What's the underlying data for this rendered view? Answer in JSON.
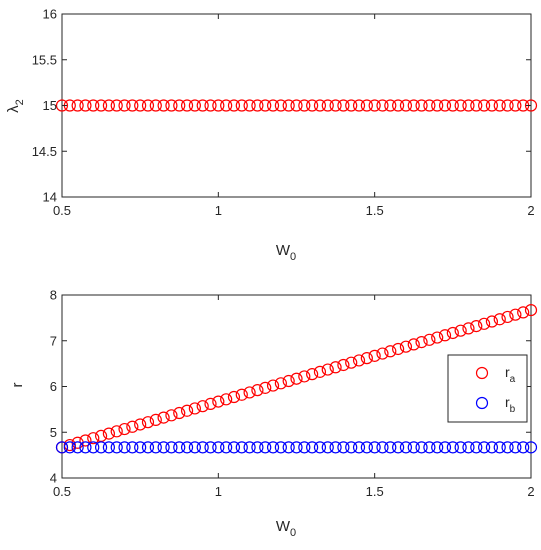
{
  "chart_data": [
    {
      "type": "scatter",
      "title": "",
      "xlabel": "W",
      "xlabel_sub": "0",
      "ylabel": "λ",
      "ylabel_sub": "2",
      "xlim": [
        0.5,
        2
      ],
      "ylim": [
        14,
        16
      ],
      "xticks": [
        "0.5",
        "1",
        "1.5",
        "2"
      ],
      "yticks": [
        "14",
        "14.5",
        "15",
        "15.5",
        "16"
      ],
      "grid": false,
      "series": [
        {
          "name": "",
          "color": "#ff0000",
          "marker": "circle",
          "x_start": 0.5,
          "x_end": 2,
          "count": 61,
          "y_start": 15,
          "y_end": 15
        }
      ]
    },
    {
      "type": "scatter",
      "title": "",
      "xlabel": "W",
      "xlabel_sub": "0",
      "ylabel": "r",
      "xlim": [
        0.5,
        2
      ],
      "ylim": [
        4,
        8
      ],
      "xticks": [
        "0.5",
        "1",
        "1.5",
        "2"
      ],
      "yticks": [
        "4",
        "5",
        "6",
        "7",
        "8"
      ],
      "grid": false,
      "legend_position": "right",
      "series": [
        {
          "name": "r",
          "name_sub": "a",
          "color": "#ff0000",
          "marker": "circle",
          "x_start": 0.5,
          "x_end": 2,
          "count": 61,
          "y_start": 4.67,
          "y_end": 7.67
        },
        {
          "name": "r",
          "name_sub": "b",
          "color": "#0000ff",
          "marker": "circle",
          "x_start": 0.5,
          "x_end": 2,
          "count": 61,
          "y_start": 4.67,
          "y_end": 4.67
        }
      ]
    }
  ]
}
